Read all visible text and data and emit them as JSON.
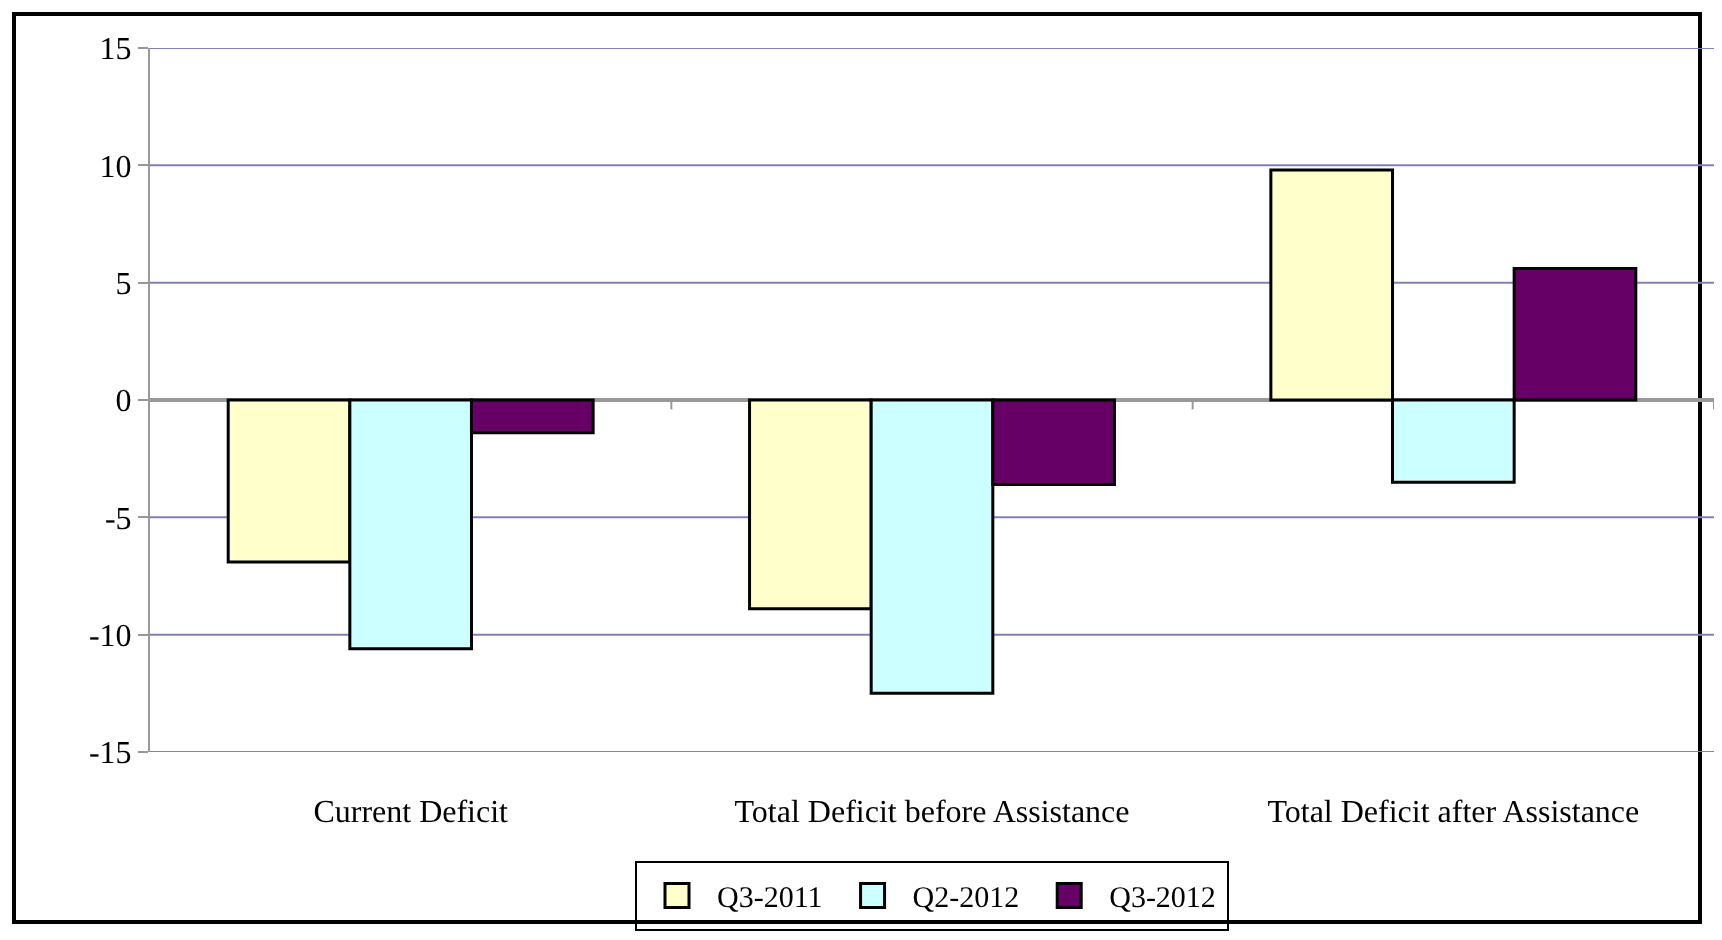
{
  "chart_data": {
    "type": "bar",
    "categories": [
      "Current Deficit",
      "Total Deficit before Assistance",
      "Total Deficit after Assistance"
    ],
    "series": [
      {
        "name": "Q3-2011",
        "color": "#ffffcc",
        "values": [
          -6.9,
          -8.9,
          9.8
        ]
      },
      {
        "name": "Q2-2012",
        "color": "#ccffff",
        "values": [
          -10.6,
          -12.5,
          -3.5
        ]
      },
      {
        "name": "Q3-2012",
        "color": "#660066",
        "values": [
          -1.4,
          -3.6,
          5.6
        ]
      }
    ],
    "ylim": [
      -15,
      15
    ],
    "yticks": [
      -15,
      -10,
      -5,
      0,
      5,
      10,
      15
    ],
    "grid": "y",
    "legend": "bottom"
  }
}
